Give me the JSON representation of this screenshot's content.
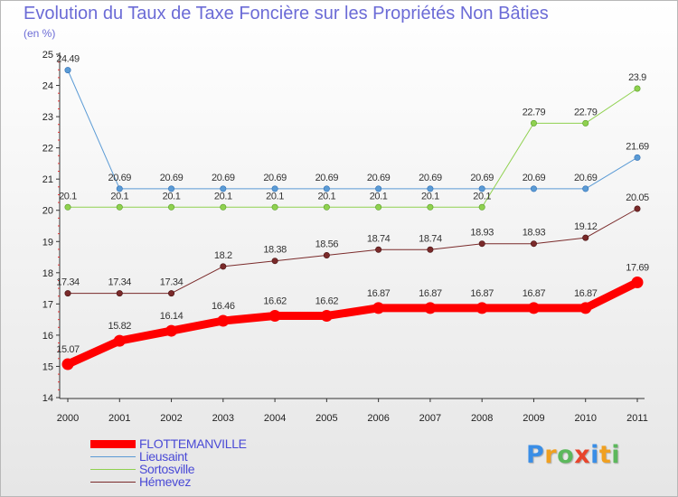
{
  "chart_data": {
    "type": "line",
    "title": "Evolution du Taux de Taxe Foncière sur les Propriétés Non Bâties",
    "subtitle": "(en %)",
    "xlabel": "",
    "ylabel": "",
    "ylim": [
      14,
      25
    ],
    "yticks": [
      14,
      15,
      16,
      17,
      18,
      19,
      20,
      21,
      22,
      23,
      24,
      25
    ],
    "grid": false,
    "legend_position": "bottom-left",
    "categories": [
      "2000",
      "2001",
      "2002",
      "2003",
      "2004",
      "2005",
      "2006",
      "2007",
      "2008",
      "2009",
      "2010",
      "2011"
    ],
    "series": [
      {
        "name": "FLOTTEMANVILLE",
        "color": "#ff0000",
        "values": [
          15.07,
          15.82,
          16.14,
          16.46,
          16.62,
          16.62,
          16.87,
          16.87,
          16.87,
          16.87,
          16.87,
          17.69
        ],
        "labels": [
          "15.07",
          "15.82",
          "16.14",
          "16.46",
          "16.62",
          "16.62",
          "16.87",
          "16.87",
          "16.87",
          "16.87",
          "16.87",
          "17.69"
        ]
      },
      {
        "name": "Lieusaint",
        "color": "#5b9bd5",
        "values": [
          24.49,
          20.69,
          20.69,
          20.69,
          20.69,
          20.69,
          20.69,
          20.69,
          20.69,
          20.69,
          20.69,
          21.69
        ],
        "labels": [
          "24.49",
          "20.69",
          "20.69",
          "20.69",
          "20.69",
          "20.69",
          "20.69",
          "20.69",
          "20.69",
          "20.69",
          "20.69",
          "21.69"
        ]
      },
      {
        "name": "Sortosville",
        "color": "#8fd14f",
        "values": [
          20.1,
          20.1,
          20.1,
          20.1,
          20.1,
          20.1,
          20.1,
          20.1,
          20.1,
          22.79,
          22.79,
          23.9
        ],
        "labels": [
          "20.1",
          "20.1",
          "20.1",
          "20.1",
          "20.1",
          "20.1",
          "20.1",
          "20.1",
          "20.1",
          "22.79",
          "22.79",
          "23.9"
        ]
      },
      {
        "name": "Hémevez",
        "color": "#7a2a2a",
        "values": [
          17.34,
          17.34,
          17.34,
          18.2,
          18.38,
          18.56,
          18.74,
          18.74,
          18.93,
          18.93,
          19.12,
          20.05
        ],
        "labels": [
          "17.34",
          "17.34",
          "17.34",
          "18.2",
          "18.38",
          "18.56",
          "18.74",
          "18.74",
          "18.93",
          "18.93",
          "19.12",
          "20.05"
        ]
      }
    ]
  },
  "brand": {
    "letters": [
      "P",
      "r",
      "o",
      "x",
      "i",
      "t",
      "i"
    ],
    "colors": [
      "#3a8ee6",
      "#f0a020",
      "#5cb85c",
      "#e8452c",
      "#3a8ee6",
      "#f0a020",
      "#5cb85c"
    ]
  }
}
